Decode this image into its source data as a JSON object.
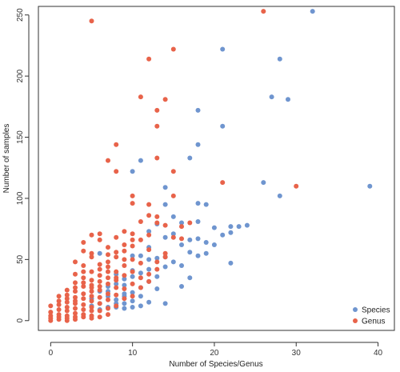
{
  "chart_data": {
    "type": "scatter",
    "title": "",
    "xlabel": "Number of Species/Genus",
    "ylabel": "Number of samples",
    "xlim": [
      -1.5,
      42
    ],
    "ylim": [
      -8,
      257
    ],
    "xticks": [
      0,
      10,
      20,
      30,
      40
    ],
    "yticks": [
      0,
      50,
      100,
      150,
      200,
      250
    ],
    "grid": false,
    "legend_position": "bottom-right",
    "series": [
      {
        "name": "Species",
        "color": "#6f95cf",
        "points": [
          [
            32,
            253
          ],
          [
            21,
            222
          ],
          [
            28,
            214
          ],
          [
            27,
            183
          ],
          [
            29,
            181
          ],
          [
            18,
            172
          ],
          [
            21,
            159
          ],
          [
            18,
            144
          ],
          [
            11,
            131
          ],
          [
            17,
            133
          ],
          [
            26,
            113
          ],
          [
            28,
            102
          ],
          [
            39,
            110
          ],
          [
            10,
            122
          ],
          [
            14,
            109
          ],
          [
            14,
            95
          ],
          [
            18,
            96
          ],
          [
            19,
            95
          ],
          [
            18,
            81
          ],
          [
            16,
            80
          ],
          [
            13,
            79
          ],
          [
            12,
            73
          ],
          [
            15,
            71
          ],
          [
            14,
            68
          ],
          [
            17,
            66
          ],
          [
            18,
            67
          ],
          [
            19,
            64
          ],
          [
            20,
            76
          ],
          [
            22,
            77
          ],
          [
            22,
            72
          ],
          [
            23,
            77
          ],
          [
            24,
            78
          ],
          [
            21,
            70
          ],
          [
            17,
            56
          ],
          [
            18,
            53
          ],
          [
            19,
            55
          ],
          [
            20,
            62
          ],
          [
            11,
            53
          ],
          [
            12,
            50
          ],
          [
            13,
            51
          ],
          [
            15,
            48
          ],
          [
            16,
            45
          ],
          [
            22,
            47
          ],
          [
            14,
            52
          ],
          [
            14,
            44
          ],
          [
            16,
            28
          ],
          [
            13,
            26
          ],
          [
            12,
            42
          ],
          [
            11,
            39
          ],
          [
            10,
            36
          ],
          [
            9,
            34
          ],
          [
            9,
            29
          ],
          [
            10,
            23
          ],
          [
            8,
            38
          ],
          [
            8,
            30
          ],
          [
            9,
            22
          ],
          [
            8,
            17
          ],
          [
            9,
            14
          ],
          [
            10,
            16
          ],
          [
            10,
            11
          ],
          [
            7,
            24
          ],
          [
            7,
            20
          ],
          [
            6,
            24
          ],
          [
            6,
            14
          ],
          [
            6,
            9
          ],
          [
            7,
            11
          ],
          [
            5,
            12
          ],
          [
            8,
            11
          ],
          [
            9,
            10
          ],
          [
            7,
            28
          ],
          [
            9,
            20
          ],
          [
            5,
            18
          ],
          [
            11,
            20
          ],
          [
            11,
            27
          ],
          [
            14,
            14
          ],
          [
            12,
            15
          ],
          [
            11,
            12
          ],
          [
            6,
            55
          ],
          [
            10,
            53
          ],
          [
            16,
            62
          ],
          [
            15,
            85
          ],
          [
            13,
            36
          ],
          [
            12,
            32
          ],
          [
            8,
            14
          ],
          [
            10,
            41
          ],
          [
            12,
            60
          ],
          [
            17,
            35
          ]
        ]
      },
      {
        "name": "Genus",
        "color": "#e8634a",
        "points": [
          [
            26,
            253
          ],
          [
            5,
            245
          ],
          [
            15,
            222
          ],
          [
            12,
            214
          ],
          [
            11,
            183
          ],
          [
            14,
            181
          ],
          [
            13,
            172
          ],
          [
            13,
            159
          ],
          [
            8,
            144
          ],
          [
            7,
            131
          ],
          [
            13,
            133
          ],
          [
            15,
            122
          ],
          [
            8,
            122
          ],
          [
            21,
            113
          ],
          [
            30,
            110
          ],
          [
            10,
            102
          ],
          [
            15,
            102
          ],
          [
            10,
            96
          ],
          [
            12,
            95
          ],
          [
            12,
            86
          ],
          [
            13,
            85
          ],
          [
            13,
            80
          ],
          [
            14,
            78
          ],
          [
            16,
            77
          ],
          [
            11,
            81
          ],
          [
            9,
            73
          ],
          [
            10,
            71
          ],
          [
            12,
            70
          ],
          [
            11,
            66
          ],
          [
            15,
            68
          ],
          [
            16,
            67
          ],
          [
            17,
            80
          ],
          [
            4,
            64
          ],
          [
            5,
            70
          ],
          [
            6,
            71
          ],
          [
            7,
            60
          ],
          [
            8,
            56
          ],
          [
            9,
            57
          ],
          [
            10,
            66
          ],
          [
            10,
            61
          ],
          [
            12,
            58
          ],
          [
            14,
            52
          ],
          [
            14,
            55
          ],
          [
            4,
            57
          ],
          [
            5,
            55
          ],
          [
            7,
            48
          ],
          [
            8,
            52
          ],
          [
            9,
            45
          ],
          [
            10,
            50
          ],
          [
            11,
            47
          ],
          [
            13,
            48
          ],
          [
            3,
            48
          ],
          [
            4,
            45
          ],
          [
            5,
            40
          ],
          [
            6,
            42
          ],
          [
            7,
            40
          ],
          [
            8,
            35
          ],
          [
            9,
            37
          ],
          [
            10,
            30
          ],
          [
            11,
            27
          ],
          [
            12,
            38
          ],
          [
            13,
            42
          ],
          [
            3,
            38
          ],
          [
            4,
            35
          ],
          [
            5,
            33
          ],
          [
            6,
            32
          ],
          [
            7,
            30
          ],
          [
            8,
            27
          ],
          [
            9,
            26
          ],
          [
            3,
            31
          ],
          [
            4,
            28
          ],
          [
            5,
            27
          ],
          [
            6,
            25
          ],
          [
            7,
            22
          ],
          [
            8,
            21
          ],
          [
            2,
            25
          ],
          [
            3,
            24
          ],
          [
            4,
            22
          ],
          [
            5,
            20
          ],
          [
            6,
            19
          ],
          [
            7,
            17
          ],
          [
            2,
            21
          ],
          [
            3,
            19
          ],
          [
            4,
            18
          ],
          [
            5,
            16
          ],
          [
            6,
            14
          ],
          [
            1,
            16
          ],
          [
            2,
            15
          ],
          [
            3,
            14
          ],
          [
            4,
            13
          ],
          [
            5,
            11
          ],
          [
            1,
            13
          ],
          [
            2,
            11
          ],
          [
            3,
            10
          ],
          [
            4,
            9
          ],
          [
            5,
            8
          ],
          [
            0,
            12
          ],
          [
            1,
            9
          ],
          [
            2,
            8
          ],
          [
            3,
            6
          ],
          [
            4,
            5
          ],
          [
            0,
            7
          ],
          [
            0,
            4
          ],
          [
            0,
            2
          ],
          [
            1,
            5
          ],
          [
            1,
            3
          ],
          [
            2,
            4
          ],
          [
            2,
            2
          ],
          [
            3,
            3
          ],
          [
            4,
            3
          ],
          [
            5,
            4
          ],
          [
            0,
            0
          ],
          [
            1,
            1
          ],
          [
            2,
            0
          ],
          [
            3,
            1
          ],
          [
            5,
            2
          ],
          [
            6,
            3
          ],
          [
            7,
            5
          ],
          [
            6,
            8
          ],
          [
            7,
            10
          ],
          [
            8,
            12
          ],
          [
            6,
            46
          ],
          [
            5,
            52
          ],
          [
            7,
            54
          ],
          [
            9,
            62
          ],
          [
            8,
            68
          ],
          [
            6,
            66
          ],
          [
            10,
            40
          ],
          [
            11,
            35
          ],
          [
            12,
            32
          ],
          [
            7,
            44
          ],
          [
            4,
            40
          ],
          [
            6,
            37
          ],
          [
            8,
            33
          ],
          [
            3,
            27
          ],
          [
            5,
            24
          ],
          [
            9,
            18
          ],
          [
            10,
            20
          ],
          [
            7,
            35
          ],
          [
            6,
            28
          ],
          [
            4,
            31
          ],
          [
            2,
            18
          ],
          [
            1,
            20
          ],
          [
            3,
            16
          ],
          [
            5,
            29
          ],
          [
            8,
            40
          ],
          [
            9,
            50
          ]
        ]
      }
    ]
  }
}
